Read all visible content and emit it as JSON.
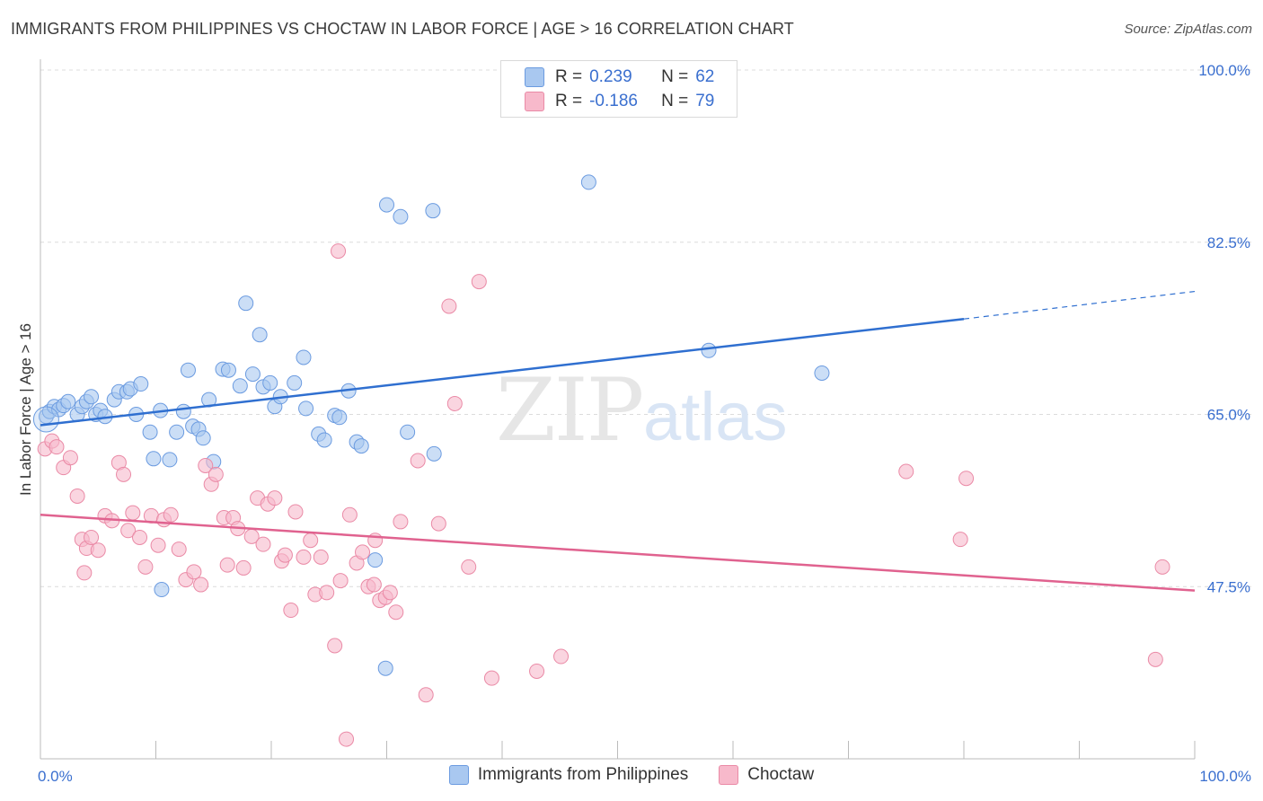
{
  "title": "IMMIGRANTS FROM PHILIPPINES VS CHOCTAW IN LABOR FORCE | AGE > 16 CORRELATION CHART",
  "source": "Source: ZipAtlas.com",
  "watermark": {
    "zip": "ZIP",
    "atlas": "atlas"
  },
  "stats_box": {
    "rows": [
      {
        "r_label": "R =",
        "r_value": "0.239",
        "n_label": "N =",
        "n_value": "62",
        "color": "#a9c8f0",
        "border": "#6b9be0"
      },
      {
        "r_label": "R =",
        "r_value": "-0.186",
        "n_label": "N =",
        "n_value": "79",
        "color": "#f7b9cb",
        "border": "#ea8aa6"
      }
    ]
  },
  "legend": [
    {
      "label": "Immigrants from Philippines",
      "color": "#a9c8f0",
      "border": "#6b9be0"
    },
    {
      "label": "Choctaw",
      "color": "#f7b9cb",
      "border": "#ea8aa6"
    }
  ],
  "chart_data": {
    "type": "scatter",
    "title": "IMMIGRANTS FROM PHILIPPINES VS CHOCTAW IN LABOR FORCE | AGE > 16 CORRELATION CHART",
    "xlabel": "",
    "ylabel": "In Labor Force | Age > 16",
    "xlim": [
      0,
      100
    ],
    "ylim": [
      30,
      100
    ],
    "x_tick_labels": [
      "0.0%",
      "100.0%"
    ],
    "y_ticks": [
      47.5,
      65.0,
      82.5,
      100.0
    ],
    "y_tick_labels": [
      "47.5%",
      "65.0%",
      "82.5%",
      "100.0%"
    ],
    "grid": true,
    "series": [
      {
        "name": "Immigrants from Philippines",
        "color": "#a9c8f0",
        "stroke": "#6b9be0",
        "line_color": "#2f6fd0",
        "trend": {
          "x0": 0,
          "y0": 63.9,
          "x1": 80,
          "y1": 74.7,
          "dashed_to_x": 100,
          "dashed_to_y": 77.5
        },
        "points": [
          [
            0.5,
            64.8
          ],
          [
            0.8,
            65.3
          ],
          [
            1.2,
            65.8
          ],
          [
            1.6,
            65.5
          ],
          [
            2.0,
            65.9
          ],
          [
            2.4,
            66.3
          ],
          [
            3.2,
            65.0
          ],
          [
            3.6,
            65.8
          ],
          [
            4.0,
            66.3
          ],
          [
            4.4,
            66.8
          ],
          [
            4.8,
            65.0
          ],
          [
            5.2,
            65.4
          ],
          [
            5.6,
            64.8
          ],
          [
            6.4,
            66.5
          ],
          [
            6.8,
            67.3
          ],
          [
            7.5,
            67.3
          ],
          [
            7.8,
            67.6
          ],
          [
            8.7,
            68.1
          ],
          [
            8.3,
            65.0
          ],
          [
            9.5,
            63.2
          ],
          [
            9.8,
            60.5
          ],
          [
            10.4,
            65.4
          ],
          [
            11.2,
            60.4
          ],
          [
            11.8,
            63.2
          ],
          [
            12.4,
            65.3
          ],
          [
            12.8,
            69.5
          ],
          [
            13.2,
            63.8
          ],
          [
            13.7,
            63.5
          ],
          [
            14.1,
            62.6
          ],
          [
            14.6,
            66.5
          ],
          [
            15.0,
            60.2
          ],
          [
            15.8,
            69.6
          ],
          [
            16.3,
            69.5
          ],
          [
            17.3,
            67.9
          ],
          [
            17.8,
            76.3
          ],
          [
            18.4,
            69.1
          ],
          [
            19.0,
            73.1
          ],
          [
            19.3,
            67.8
          ],
          [
            19.9,
            68.2
          ],
          [
            20.3,
            65.8
          ],
          [
            20.8,
            66.8
          ],
          [
            22.0,
            68.2
          ],
          [
            22.8,
            70.8
          ],
          [
            23.0,
            65.6
          ],
          [
            24.1,
            63.0
          ],
          [
            24.6,
            62.4
          ],
          [
            25.5,
            64.9
          ],
          [
            25.9,
            64.7
          ],
          [
            26.7,
            67.4
          ],
          [
            27.4,
            62.2
          ],
          [
            27.8,
            61.8
          ],
          [
            29.0,
            50.2
          ],
          [
            30.0,
            86.3
          ],
          [
            31.2,
            85.1
          ],
          [
            31.8,
            63.2
          ],
          [
            34.0,
            85.7
          ],
          [
            34.1,
            61.0
          ],
          [
            47.5,
            88.6
          ],
          [
            57.9,
            71.5
          ],
          [
            67.7,
            69.2
          ],
          [
            10.5,
            47.2
          ],
          [
            29.9,
            39.2
          ]
        ]
      },
      {
        "name": "Choctaw",
        "color": "#f7b9cb",
        "stroke": "#ea8aa6",
        "line_color": "#e0628f",
        "trend": {
          "x0": 0,
          "y0": 54.8,
          "x1": 100,
          "y1": 47.1
        },
        "points": [
          [
            0.4,
            61.5
          ],
          [
            1.0,
            62.3
          ],
          [
            1.4,
            61.7
          ],
          [
            2.0,
            59.6
          ],
          [
            2.6,
            60.6
          ],
          [
            3.2,
            56.7
          ],
          [
            3.6,
            52.3
          ],
          [
            4.0,
            51.4
          ],
          [
            4.4,
            52.5
          ],
          [
            5.0,
            51.2
          ],
          [
            5.6,
            54.7
          ],
          [
            6.2,
            54.2
          ],
          [
            6.8,
            60.1
          ],
          [
            7.2,
            58.9
          ],
          [
            7.6,
            53.2
          ],
          [
            8.0,
            55.0
          ],
          [
            8.6,
            52.5
          ],
          [
            9.1,
            49.5
          ],
          [
            9.6,
            54.7
          ],
          [
            10.2,
            51.7
          ],
          [
            10.7,
            54.3
          ],
          [
            11.3,
            54.8
          ],
          [
            12.0,
            51.3
          ],
          [
            12.6,
            48.2
          ],
          [
            13.3,
            49.0
          ],
          [
            13.9,
            47.7
          ],
          [
            14.3,
            59.8
          ],
          [
            14.8,
            57.9
          ],
          [
            15.2,
            58.9
          ],
          [
            15.9,
            54.5
          ],
          [
            16.2,
            49.7
          ],
          [
            16.7,
            54.5
          ],
          [
            17.1,
            53.4
          ],
          [
            17.6,
            49.4
          ],
          [
            18.3,
            52.6
          ],
          [
            18.8,
            56.5
          ],
          [
            19.3,
            51.8
          ],
          [
            19.7,
            55.9
          ],
          [
            20.3,
            56.5
          ],
          [
            20.9,
            50.1
          ],
          [
            21.2,
            50.7
          ],
          [
            21.7,
            45.1
          ],
          [
            22.1,
            55.1
          ],
          [
            22.8,
            50.5
          ],
          [
            23.4,
            52.2
          ],
          [
            23.8,
            46.7
          ],
          [
            24.3,
            50.5
          ],
          [
            24.8,
            46.9
          ],
          [
            25.5,
            41.5
          ],
          [
            26.0,
            48.1
          ],
          [
            26.5,
            32.0
          ],
          [
            27.4,
            49.9
          ],
          [
            27.9,
            51.0
          ],
          [
            28.4,
            47.5
          ],
          [
            28.9,
            47.7
          ],
          [
            29.4,
            46.1
          ],
          [
            29.9,
            46.4
          ],
          [
            30.3,
            46.9
          ],
          [
            30.8,
            44.9
          ],
          [
            31.2,
            54.1
          ],
          [
            32.7,
            60.3
          ],
          [
            33.4,
            36.5
          ],
          [
            34.5,
            53.9
          ],
          [
            35.4,
            76.0
          ],
          [
            35.9,
            66.1
          ],
          [
            37.1,
            49.5
          ],
          [
            38.0,
            78.5
          ],
          [
            39.1,
            38.2
          ],
          [
            43.0,
            38.9
          ],
          [
            45.1,
            40.4
          ],
          [
            25.8,
            81.6
          ],
          [
            26.8,
            54.8
          ],
          [
            29.0,
            52.2
          ],
          [
            75.0,
            59.2
          ],
          [
            79.7,
            52.3
          ],
          [
            80.2,
            58.5
          ],
          [
            97.2,
            49.5
          ],
          [
            96.6,
            40.1
          ],
          [
            3.8,
            48.9
          ]
        ]
      }
    ]
  }
}
